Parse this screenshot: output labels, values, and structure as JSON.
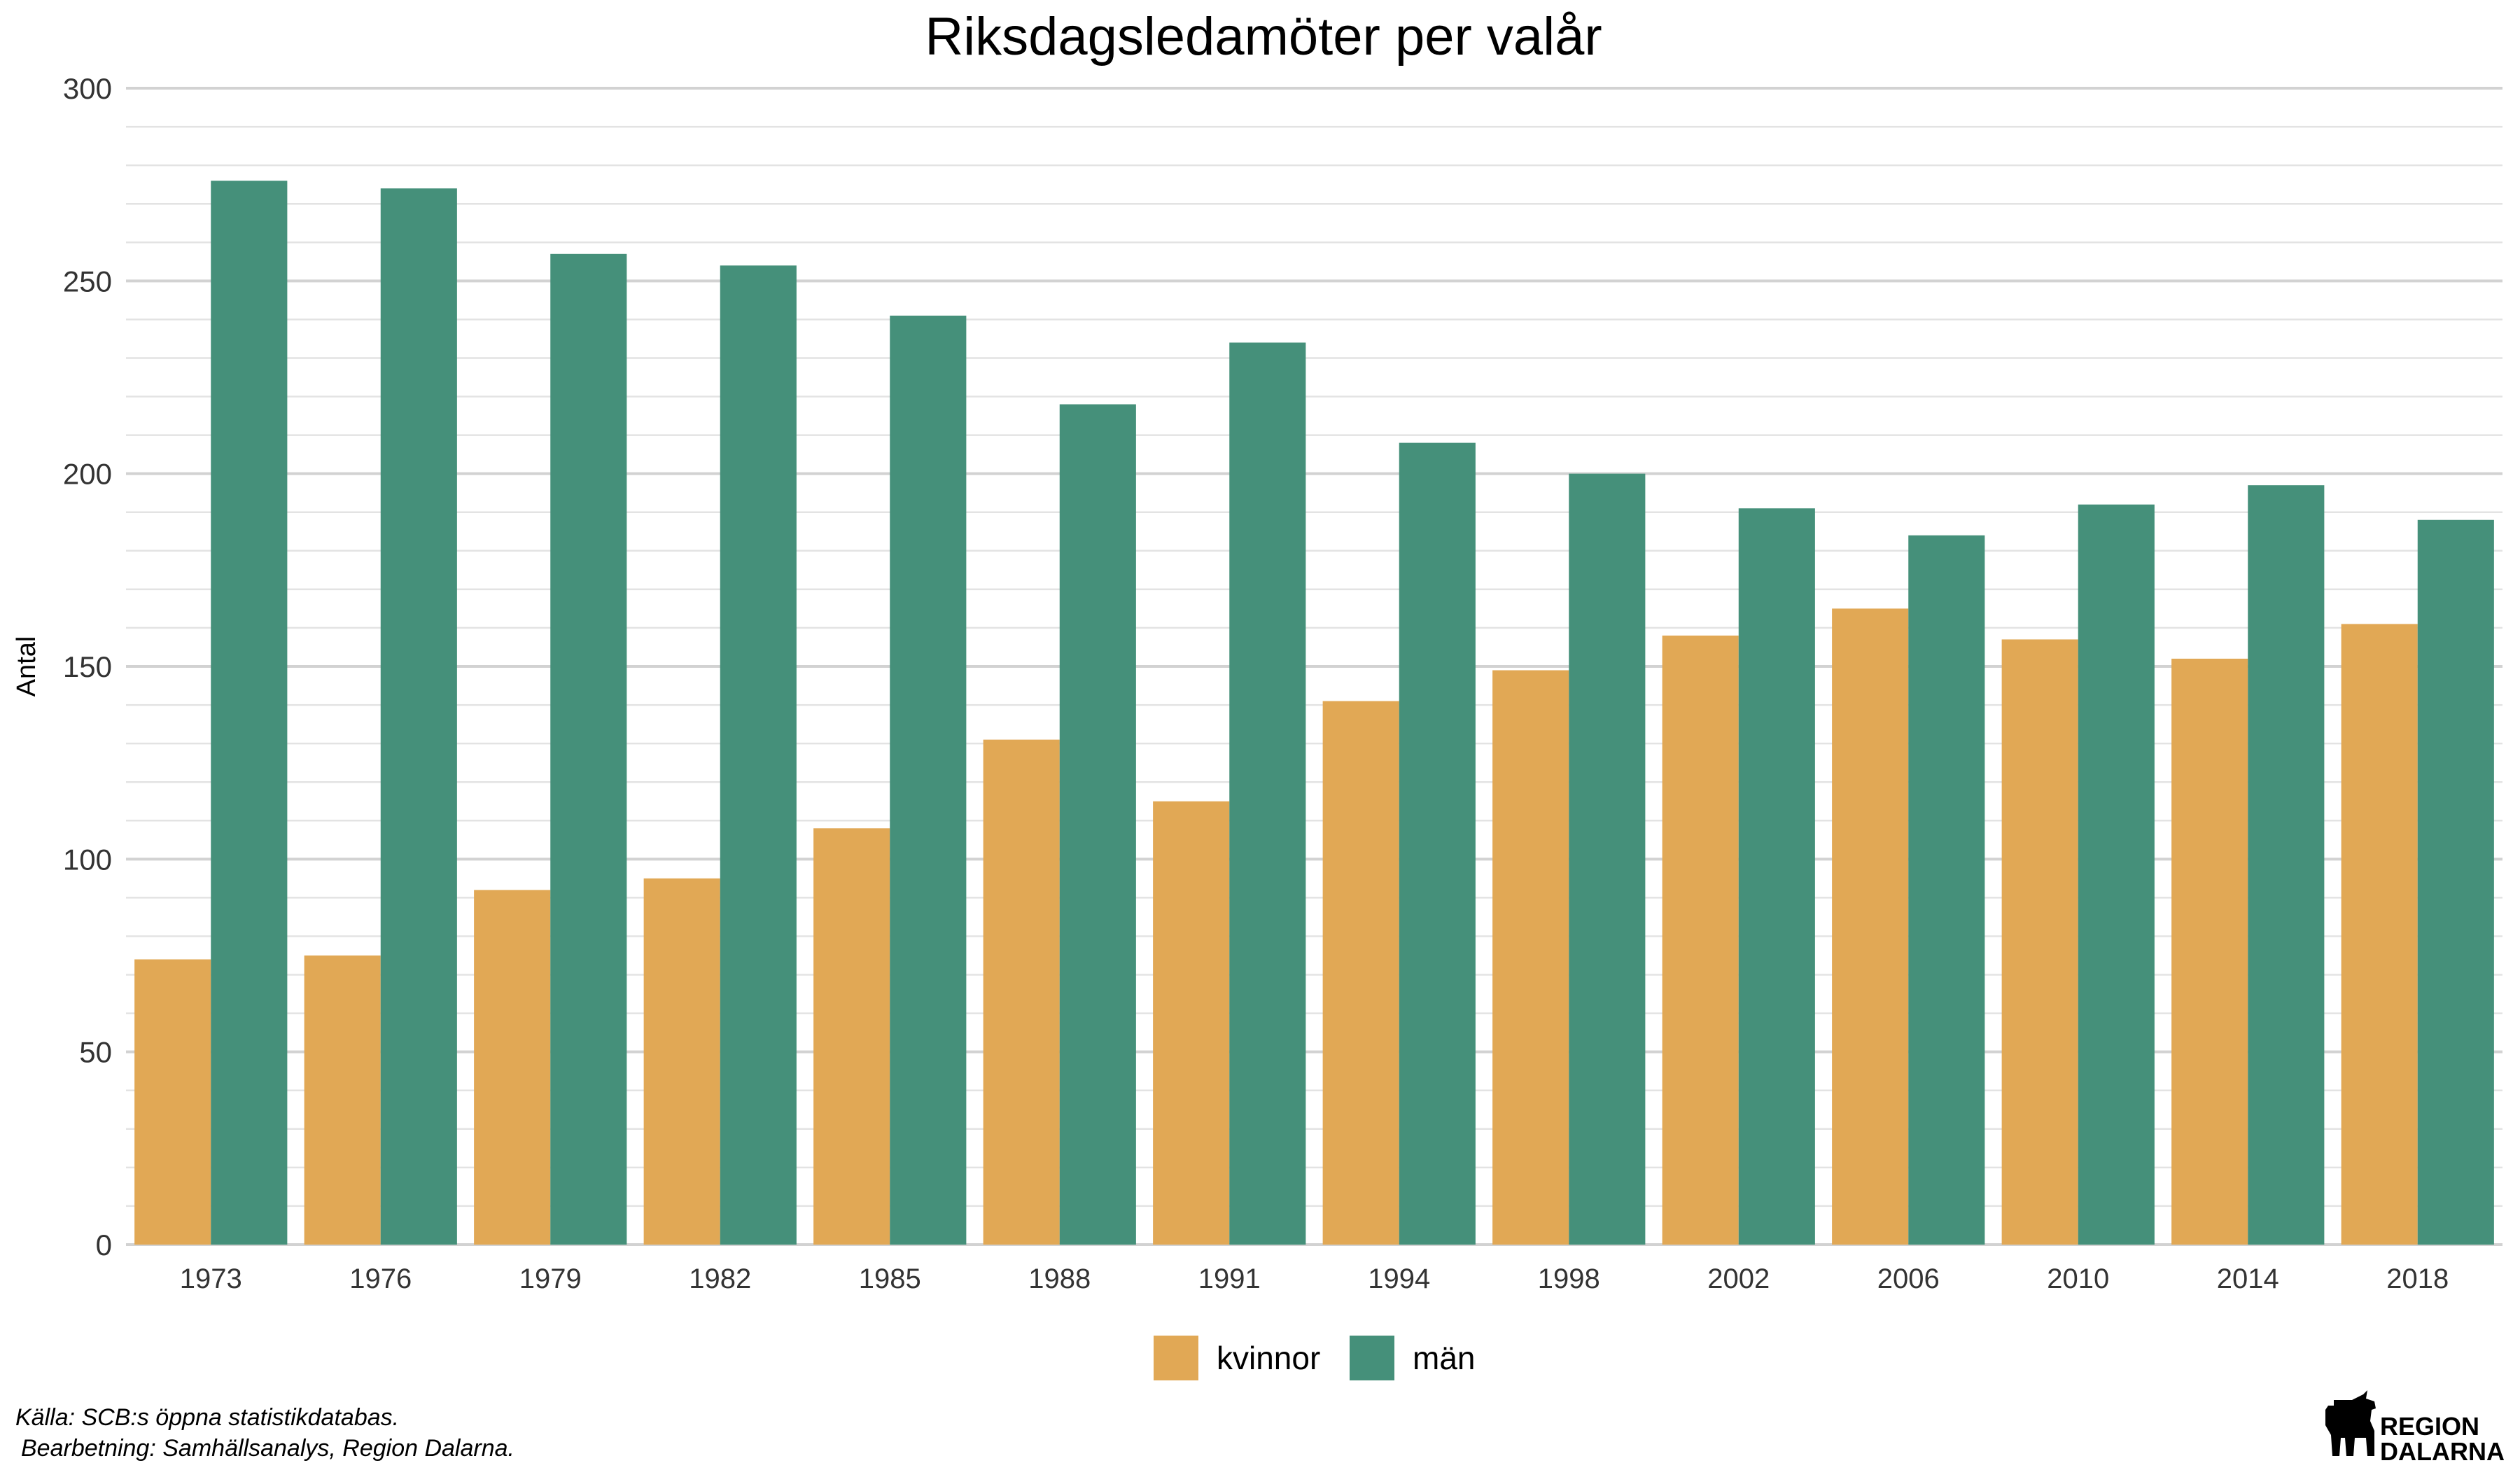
{
  "chart_data": {
    "type": "bar",
    "title": "Riksdagsledamöter per valår",
    "xlabel": "",
    "ylabel": "Antal",
    "ylim": [
      0,
      300
    ],
    "yticks": [
      0,
      50,
      100,
      150,
      200,
      250,
      300
    ],
    "grid": true,
    "legend_position": "bottom",
    "categories": [
      "1973",
      "1976",
      "1979",
      "1982",
      "1985",
      "1988",
      "1991",
      "1994",
      "1998",
      "2002",
      "2006",
      "2010",
      "2014",
      "2018"
    ],
    "series": [
      {
        "name": "kvinnor",
        "color": "#E1A855",
        "values": [
          74,
          75,
          92,
          95,
          108,
          131,
          115,
          141,
          149,
          158,
          165,
          157,
          152,
          161
        ]
      },
      {
        "name": "män",
        "color": "#45907A",
        "values": [
          276,
          274,
          257,
          254,
          241,
          218,
          234,
          208,
          200,
          191,
          184,
          192,
          197,
          188
        ]
      }
    ]
  },
  "caption": {
    "source": "Källa: SCB:s öppna statistikdatabas.",
    "processing": "Bearbetning: Samhällsanalys, Region Dalarna."
  },
  "logo": {
    "line1": "REGION",
    "line2": "DALARNA",
    "icon": "dala-horse-icon"
  },
  "colors": {
    "grid_major": "#D2D2D2",
    "grid_minor": "#E3E3E3",
    "text": "#333333"
  }
}
